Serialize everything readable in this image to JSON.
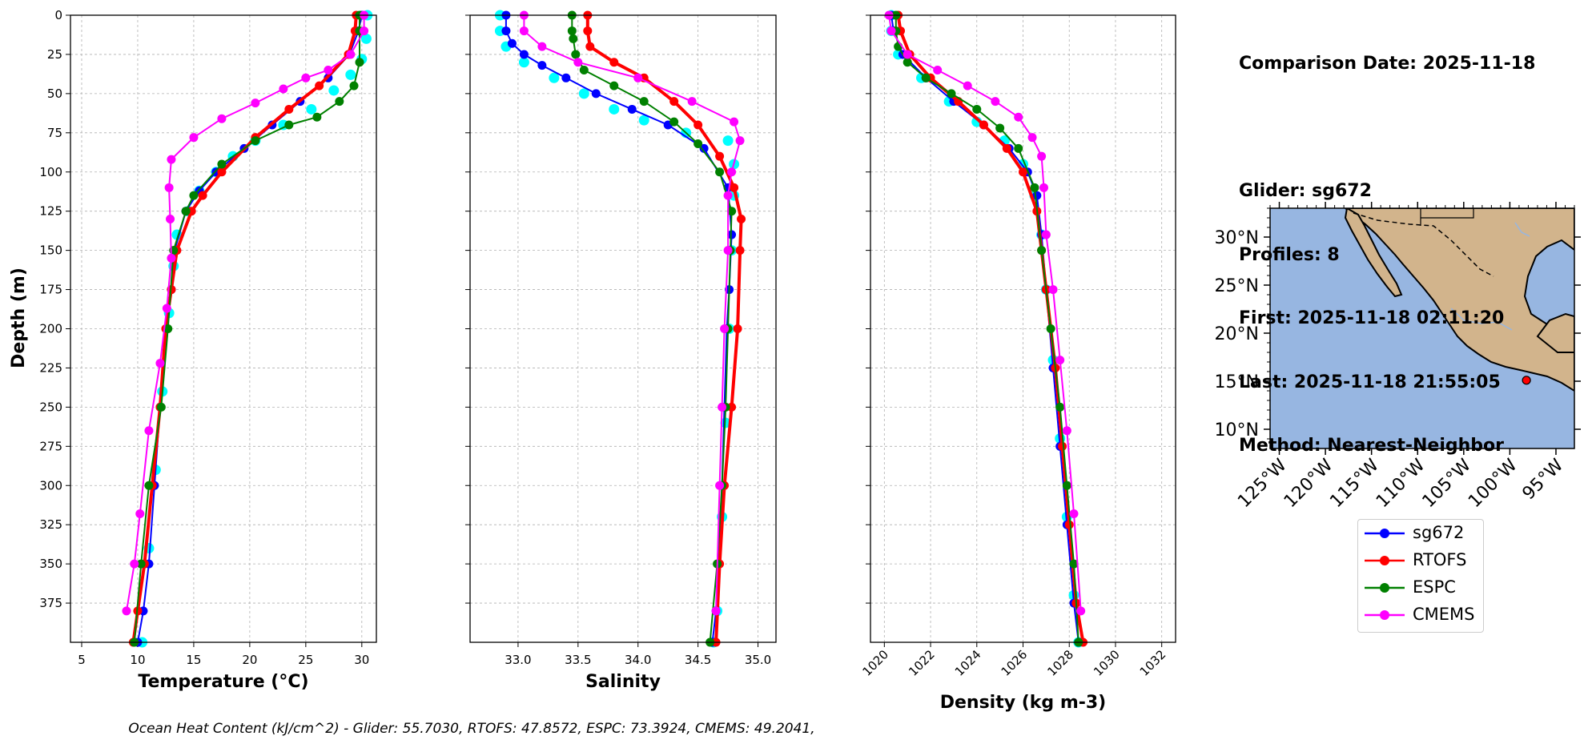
{
  "chart_data": [
    {
      "type": "line",
      "xlabel": "Temperature (°C)",
      "ylabel": "Depth (m)",
      "xlim": [
        4,
        31.3
      ],
      "ylim": [
        400,
        0
      ],
      "xticks": [
        "5",
        "10",
        "15",
        "20",
        "25",
        "30"
      ],
      "yticks": [
        "0",
        "25",
        "50",
        "75",
        "100",
        "125",
        "150",
        "175",
        "200",
        "225",
        "250",
        "275",
        "300",
        "325",
        "350",
        "375"
      ],
      "grid": true,
      "glider_scatter": [
        {
          "x": 30.5,
          "y": 0
        },
        {
          "x": 30.4,
          "y": 15
        },
        {
          "x": 30.0,
          "y": 28
        },
        {
          "x": 29.0,
          "y": 38
        },
        {
          "x": 27.5,
          "y": 48
        },
        {
          "x": 25.5,
          "y": 60
        },
        {
          "x": 23.0,
          "y": 70
        },
        {
          "x": 20.5,
          "y": 80
        },
        {
          "x": 18.5,
          "y": 90
        },
        {
          "x": 17.0,
          "y": 100
        },
        {
          "x": 15.5,
          "y": 112
        },
        {
          "x": 14.5,
          "y": 125
        },
        {
          "x": 13.5,
          "y": 140
        },
        {
          "x": 13.2,
          "y": 160
        },
        {
          "x": 12.8,
          "y": 190
        },
        {
          "x": 12.2,
          "y": 240
        },
        {
          "x": 11.6,
          "y": 290
        },
        {
          "x": 11.0,
          "y": 340
        },
        {
          "x": 10.4,
          "y": 400
        }
      ],
      "series": [
        {
          "name": "sg672",
          "x": [
            30.0,
            29.7,
            28.9,
            27.0,
            24.5,
            22.0,
            19.5,
            17.0,
            15.5,
            14.3,
            13.3,
            13.0,
            12.6,
            12.0,
            11.5,
            11.0,
            10.5,
            10.0
          ],
          "y": [
            0,
            10,
            25,
            40,
            55,
            70,
            85,
            100,
            112,
            125,
            150,
            175,
            200,
            250,
            300,
            350,
            380,
            400
          ]
        },
        {
          "name": "RTOFS",
          "x": [
            29.5,
            29.4,
            28.8,
            26.2,
            23.5,
            20.5,
            17.5,
            15.8,
            14.8,
            13.5,
            13.0,
            12.5,
            12.0,
            11.3,
            10.6,
            10.0,
            9.6
          ],
          "y": [
            0,
            10,
            25,
            45,
            60,
            78,
            100,
            115,
            125,
            150,
            175,
            200,
            250,
            300,
            350,
            380,
            400
          ]
        },
        {
          "name": "ESPC",
          "x": [
            29.8,
            29.8,
            29.8,
            29.3,
            28.0,
            26.0,
            23.5,
            20.5,
            17.5,
            15.0,
            14.3,
            13.2,
            12.7,
            12.1,
            11.0,
            10.3,
            9.7
          ],
          "y": [
            0,
            10,
            30,
            45,
            55,
            65,
            70,
            80,
            95,
            115,
            125,
            150,
            200,
            250,
            300,
            350,
            400
          ]
        },
        {
          "name": "CMEMS",
          "x": [
            30.2,
            30.2,
            29.0,
            27.0,
            25.0,
            23.0,
            20.5,
            17.5,
            15.0,
            13.0,
            12.8,
            12.9,
            13.0,
            12.6,
            12.0,
            11.0,
            10.2,
            9.7,
            9.0
          ],
          "y": [
            0,
            10,
            25,
            35,
            40,
            47,
            56,
            66,
            78,
            92,
            110,
            130,
            155,
            187,
            222,
            265,
            318,
            350,
            380
          ]
        }
      ]
    },
    {
      "type": "line",
      "xlabel": "Salinity",
      "ylabel": "",
      "xlim": [
        32.6,
        35.15
      ],
      "ylim": [
        400,
        0
      ],
      "xticks": [
        "33.0",
        "33.5",
        "34.0",
        "34.5",
        "35.0"
      ],
      "grid": true,
      "glider_scatter": [
        {
          "x": 32.85,
          "y": 0
        },
        {
          "x": 32.85,
          "y": 10
        },
        {
          "x": 32.9,
          "y": 20
        },
        {
          "x": 33.05,
          "y": 30
        },
        {
          "x": 33.3,
          "y": 40
        },
        {
          "x": 33.55,
          "y": 50
        },
        {
          "x": 33.8,
          "y": 60
        },
        {
          "x": 34.05,
          "y": 67
        },
        {
          "x": 34.4,
          "y": 75
        },
        {
          "x": 34.75,
          "y": 80
        },
        {
          "x": 34.8,
          "y": 95
        },
        {
          "x": 34.8,
          "y": 115
        },
        {
          "x": 34.78,
          "y": 150
        },
        {
          "x": 34.76,
          "y": 200
        },
        {
          "x": 34.73,
          "y": 260
        },
        {
          "x": 34.7,
          "y": 320
        },
        {
          "x": 34.66,
          "y": 380
        },
        {
          "x": 34.63,
          "y": 400
        }
      ],
      "series": [
        {
          "name": "sg672",
          "x": [
            32.9,
            32.9,
            32.95,
            33.05,
            33.2,
            33.4,
            33.65,
            33.95,
            34.25,
            34.55,
            34.75,
            34.78,
            34.76,
            34.74,
            34.72,
            34.7,
            34.67,
            34.65,
            34.62
          ],
          "y": [
            0,
            10,
            18,
            25,
            32,
            40,
            50,
            60,
            70,
            85,
            110,
            140,
            175,
            200,
            250,
            300,
            350,
            380,
            400
          ]
        },
        {
          "name": "RTOFS",
          "x": [
            33.58,
            33.58,
            33.6,
            33.8,
            34.05,
            34.3,
            34.5,
            34.68,
            34.8,
            34.86,
            34.85,
            34.83,
            34.78,
            34.72,
            34.68,
            34.65
          ],
          "y": [
            0,
            10,
            20,
            30,
            40,
            55,
            70,
            90,
            110,
            130,
            150,
            200,
            250,
            300,
            350,
            400
          ]
        },
        {
          "name": "ESPC",
          "x": [
            33.45,
            33.45,
            33.46,
            33.48,
            33.55,
            33.8,
            34.05,
            34.3,
            34.5,
            34.68,
            34.78,
            34.77,
            34.75,
            34.73,
            34.7,
            34.66,
            34.6
          ],
          "y": [
            0,
            10,
            15,
            25,
            35,
            45,
            55,
            68,
            82,
            100,
            125,
            150,
            200,
            250,
            300,
            350,
            400
          ]
        },
        {
          "name": "CMEMS",
          "x": [
            33.05,
            33.05,
            33.2,
            33.5,
            34.0,
            34.45,
            34.8,
            34.85,
            34.78,
            34.75,
            34.75,
            34.72,
            34.7,
            34.68,
            34.65
          ],
          "y": [
            0,
            10,
            20,
            30,
            40,
            55,
            68,
            80,
            100,
            115,
            150,
            200,
            250,
            300,
            380
          ]
        }
      ]
    },
    {
      "type": "line",
      "xlabel": "Density (kg m-3)",
      "ylabel": "",
      "xlim": [
        1019.4,
        1032.6
      ],
      "ylim": [
        400,
        0
      ],
      "xticks": [
        "1020",
        "1022",
        "1024",
        "1026",
        "1028",
        "1030",
        "1032"
      ],
      "grid": true,
      "glider_scatter": [
        {
          "x": 1020.3,
          "y": 0
        },
        {
          "x": 1020.3,
          "y": 10
        },
        {
          "x": 1020.6,
          "y": 25
        },
        {
          "x": 1021.6,
          "y": 40
        },
        {
          "x": 1022.8,
          "y": 55
        },
        {
          "x": 1024.0,
          "y": 68
        },
        {
          "x": 1025.2,
          "y": 80
        },
        {
          "x": 1026.0,
          "y": 95
        },
        {
          "x": 1026.5,
          "y": 115
        },
        {
          "x": 1026.8,
          "y": 140
        },
        {
          "x": 1027.0,
          "y": 175
        },
        {
          "x": 1027.3,
          "y": 220
        },
        {
          "x": 1027.6,
          "y": 270
        },
        {
          "x": 1027.9,
          "y": 320
        },
        {
          "x": 1028.2,
          "y": 370
        },
        {
          "x": 1028.4,
          "y": 400
        }
      ],
      "series": [
        {
          "name": "sg672",
          "x": [
            1020.3,
            1020.4,
            1020.8,
            1021.8,
            1023.0,
            1024.3,
            1025.4,
            1026.2,
            1026.6,
            1026.8,
            1027.0,
            1027.3,
            1027.6,
            1027.9,
            1028.2,
            1028.4
          ],
          "y": [
            0,
            10,
            25,
            40,
            55,
            70,
            85,
            100,
            115,
            140,
            175,
            225,
            275,
            325,
            375,
            400
          ]
        },
        {
          "name": "RTOFS",
          "x": [
            1020.6,
            1020.7,
            1021.1,
            1022.0,
            1023.2,
            1024.3,
            1025.3,
            1026.0,
            1026.6,
            1026.8,
            1027.0,
            1027.4,
            1027.7,
            1028.0,
            1028.3,
            1028.6
          ],
          "y": [
            0,
            10,
            25,
            40,
            55,
            70,
            85,
            100,
            125,
            150,
            175,
            225,
            275,
            325,
            375,
            400
          ]
        },
        {
          "name": "ESPC",
          "x": [
            1020.5,
            1020.5,
            1020.6,
            1021.0,
            1021.8,
            1022.9,
            1024.0,
            1025.0,
            1025.8,
            1026.5,
            1026.8,
            1027.2,
            1027.6,
            1027.9,
            1028.2,
            1028.4
          ],
          "y": [
            0,
            10,
            20,
            30,
            40,
            50,
            60,
            72,
            85,
            110,
            150,
            200,
            250,
            300,
            350,
            400
          ]
        },
        {
          "name": "CMEMS",
          "x": [
            1020.2,
            1020.3,
            1021.0,
            1022.3,
            1023.6,
            1024.8,
            1025.8,
            1026.4,
            1026.8,
            1026.9,
            1027.0,
            1027.3,
            1027.6,
            1027.9,
            1028.2,
            1028.5
          ],
          "y": [
            0,
            10,
            25,
            35,
            45,
            55,
            65,
            78,
            90,
            110,
            140,
            175,
            220,
            265,
            318,
            380
          ]
        }
      ]
    }
  ],
  "info": {
    "comparison_date": "Comparison Date: 2025-11-18",
    "glider": "Glider: sg672",
    "profiles": "Profiles: 8",
    "first": "First: 2025-11-18 02:11:20",
    "last": "Last: 2025-11-18 21:55:05",
    "method": "Method: Nearest-Neighbor"
  },
  "map": {
    "lat_ticks": [
      "30°N",
      "25°N",
      "20°N",
      "15°N",
      "10°N"
    ],
    "lon_ticks": [
      "125°W",
      "120°W",
      "115°W",
      "110°W",
      "105°W",
      "100°W",
      "95°W"
    ],
    "lat_range": [
      8,
      33
    ],
    "lon_range": [
      -126,
      -93
    ],
    "glider_position": {
      "lon": -98.2,
      "lat": 15.1
    },
    "ocean_color": "#97b6e1",
    "land_color": "#d2b48c"
  },
  "legend": {
    "items": [
      {
        "label": "sg672",
        "color": "#0000ff"
      },
      {
        "label": "RTOFS",
        "color": "#ff0000"
      },
      {
        "label": "ESPC",
        "color": "#008000"
      },
      {
        "label": "CMEMS",
        "color": "#ff00ff"
      }
    ]
  },
  "colors": {
    "glider_scatter": "#00ffff",
    "sg672": "#0000ff",
    "RTOFS": "#ff0000",
    "ESPC": "#008000",
    "CMEMS": "#ff00ff"
  },
  "footer": {
    "text": "Ocean Heat Content (kJ/cm^2) - Glider: 55.7030,  RTOFS: 47.8572,  ESPC: 73.3924,  CMEMS: 49.2041,"
  }
}
